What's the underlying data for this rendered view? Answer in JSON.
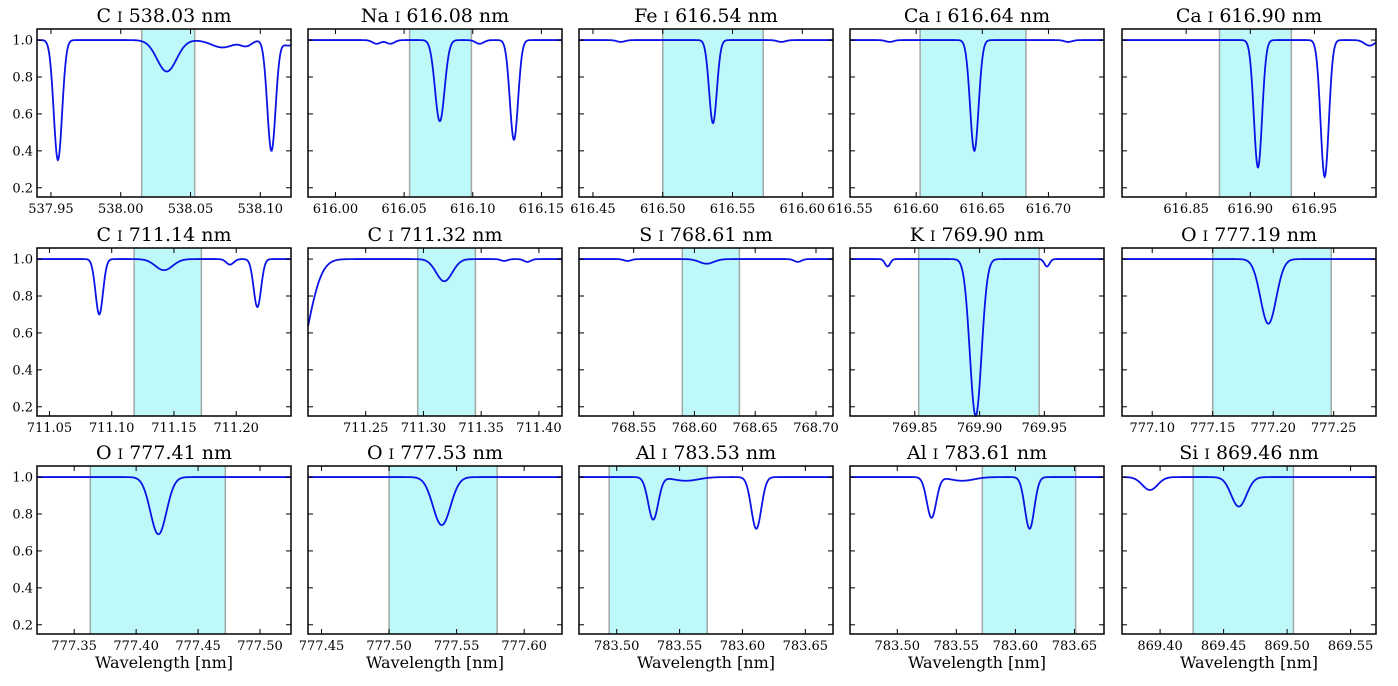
{
  "colors": {
    "line": "#0a14e6",
    "window": "#bff8f8",
    "window_edge": "#a0a8a8"
  },
  "chart_data": [
    {
      "type": "line",
      "title": "C I 538.03 nm",
      "element": "C",
      "ion": "I",
      "wl": "538.03",
      "unit": "nm",
      "xlabel": "",
      "xlim": [
        537.94,
        538.122
      ],
      "ylim": [
        0.15,
        1.06
      ],
      "xticks": [
        "537.95",
        "538.00",
        "538.05",
        "538.10"
      ],
      "window": [
        538.015,
        538.053
      ],
      "continuum": 1.0,
      "lines": [
        {
          "c": 537.955,
          "d": 0.65,
          "w": 0.003
        },
        {
          "c": 538.033,
          "d": 0.17,
          "w": 0.007
        },
        {
          "c": 538.108,
          "d": 0.6,
          "w": 0.003
        },
        {
          "c": 538.073,
          "d": 0.04,
          "w": 0.008
        },
        {
          "c": 538.09,
          "d": 0.03,
          "w": 0.004
        },
        {
          "c": 538.12,
          "d": 0.03,
          "w": 0.004
        }
      ]
    },
    {
      "type": "line",
      "title": "Na I 616.08 nm",
      "element": "Na",
      "ion": "I",
      "wl": "616.08",
      "unit": "nm",
      "xlabel": "",
      "xlim": [
        615.98,
        616.165
      ],
      "ylim": [
        0.15,
        1.06
      ],
      "xticks": [
        "616.00",
        "616.05",
        "616.10",
        "616.15"
      ],
      "window": [
        616.054,
        616.099
      ],
      "continuum": 1.0,
      "lines": [
        {
          "c": 616.076,
          "d": 0.44,
          "w": 0.0035
        },
        {
          "c": 616.13,
          "d": 0.54,
          "w": 0.003
        },
        {
          "c": 616.03,
          "d": 0.02,
          "w": 0.003
        },
        {
          "c": 616.04,
          "d": 0.02,
          "w": 0.003
        },
        {
          "c": 616.105,
          "d": 0.02,
          "w": 0.003
        }
      ]
    },
    {
      "type": "line",
      "title": "Fe I 616.54 nm",
      "element": "Fe",
      "ion": "I",
      "wl": "616.54",
      "unit": "nm",
      "xlabel": "",
      "xlim": [
        616.44,
        616.622
      ],
      "ylim": [
        0.15,
        1.06
      ],
      "xticks": [
        "616.45",
        "616.50",
        "616.55",
        "616.60"
      ],
      "window": [
        616.5,
        616.572
      ],
      "continuum": 1.0,
      "lines": [
        {
          "c": 616.536,
          "d": 0.45,
          "w": 0.0028
        },
        {
          "c": 616.47,
          "d": 0.01,
          "w": 0.003
        },
        {
          "c": 616.585,
          "d": 0.01,
          "w": 0.003
        }
      ]
    },
    {
      "type": "line",
      "title": "Ca I 616.64 nm",
      "element": "Ca",
      "ion": "I",
      "wl": "616.64",
      "unit": "nm",
      "xlabel": "",
      "xlim": [
        616.55,
        616.742
      ],
      "ylim": [
        0.15,
        1.06
      ],
      "xticks": [
        "616.55",
        "616.60",
        "616.65",
        "616.70"
      ],
      "window": [
        616.603,
        616.683
      ],
      "continuum": 1.0,
      "lines": [
        {
          "c": 616.644,
          "d": 0.6,
          "w": 0.0032
        },
        {
          "c": 616.58,
          "d": 0.01,
          "w": 0.003
        },
        {
          "c": 616.715,
          "d": 0.01,
          "w": 0.003
        }
      ]
    },
    {
      "type": "line",
      "title": "Ca I 616.90 nm",
      "element": "Ca",
      "ion": "I",
      "wl": "616.90",
      "unit": "nm",
      "xlabel": "",
      "xlim": [
        616.8,
        616.998
      ],
      "ylim": [
        0.15,
        1.06
      ],
      "xticks": [
        "616.85",
        "616.90",
        "616.95"
      ],
      "window": [
        616.876,
        616.932
      ],
      "continuum": 1.0,
      "lines": [
        {
          "c": 616.906,
          "d": 0.69,
          "w": 0.0032
        },
        {
          "c": 616.958,
          "d": 0.74,
          "w": 0.0032
        },
        {
          "c": 616.993,
          "d": 0.03,
          "w": 0.004
        }
      ]
    },
    {
      "type": "line",
      "title": "C I 711.14 nm",
      "element": "C",
      "ion": "I",
      "wl": "711.14",
      "unit": "nm",
      "xlabel": "",
      "xlim": [
        711.04,
        711.244
      ],
      "ylim": [
        0.15,
        1.06
      ],
      "xticks": [
        "711.05",
        "711.10",
        "711.15",
        "711.20"
      ],
      "window": [
        711.118,
        711.172
      ],
      "continuum": 1.0,
      "lines": [
        {
          "c": 711.09,
          "d": 0.3,
          "w": 0.003
        },
        {
          "c": 711.142,
          "d": 0.06,
          "w": 0.007
        },
        {
          "c": 711.217,
          "d": 0.26,
          "w": 0.003
        },
        {
          "c": 711.195,
          "d": 0.03,
          "w": 0.003
        }
      ]
    },
    {
      "type": "line",
      "title": "C I 711.32 nm",
      "element": "C",
      "ion": "I",
      "wl": "711.32",
      "unit": "nm",
      "xlabel": "",
      "xlim": [
        711.2,
        711.42
      ],
      "ylim": [
        0.15,
        1.06
      ],
      "xticks": [
        "711.25",
        "711.30",
        "711.35",
        "711.40"
      ],
      "window": [
        711.295,
        711.345
      ],
      "continuum": 1.0,
      "lines": [
        {
          "c": 711.318,
          "d": 0.12,
          "w": 0.007
        },
        {
          "c": 711.188,
          "d": 0.6,
          "w": 0.012
        },
        {
          "c": 711.37,
          "d": 0.01,
          "w": 0.003
        },
        {
          "c": 711.39,
          "d": 0.015,
          "w": 0.003
        }
      ]
    },
    {
      "type": "line",
      "title": "S I 768.61 nm",
      "element": "S",
      "ion": "I",
      "wl": "768.61",
      "unit": "nm",
      "xlabel": "",
      "xlim": [
        768.505,
        768.714
      ],
      "ylim": [
        0.15,
        1.06
      ],
      "xticks": [
        "768.55",
        "768.60",
        "768.65",
        "768.70"
      ],
      "window": [
        768.59,
        768.637
      ],
      "continuum": 1.0,
      "lines": [
        {
          "c": 768.61,
          "d": 0.025,
          "w": 0.006
        },
        {
          "c": 768.545,
          "d": 0.01,
          "w": 0.003
        },
        {
          "c": 768.685,
          "d": 0.015,
          "w": 0.003
        }
      ]
    },
    {
      "type": "line",
      "title": "K I 769.90 nm",
      "element": "K",
      "ion": "I",
      "wl": "769.90",
      "unit": "nm",
      "xlabel": "",
      "xlim": [
        769.8,
        769.996
      ],
      "ylim": [
        0.15,
        1.06
      ],
      "xticks": [
        "769.85",
        "769.90",
        "769.95"
      ],
      "window": [
        769.853,
        769.946
      ],
      "continuum": 1.0,
      "lines": [
        {
          "c": 769.897,
          "d": 0.85,
          "w": 0.0045
        },
        {
          "c": 769.829,
          "d": 0.04,
          "w": 0.002
        },
        {
          "c": 769.952,
          "d": 0.04,
          "w": 0.002
        }
      ]
    },
    {
      "type": "line",
      "title": "O I 777.19 nm",
      "element": "O",
      "ion": "I",
      "wl": "777.19",
      "unit": "nm",
      "xlabel": "",
      "xlim": [
        777.075,
        777.285
      ],
      "ylim": [
        0.15,
        1.06
      ],
      "xticks": [
        "777.10",
        "777.15",
        "777.20",
        "777.25"
      ],
      "window": [
        777.15,
        777.248
      ],
      "continuum": 1.0,
      "lines": [
        {
          "c": 777.196,
          "d": 0.35,
          "w": 0.0065
        }
      ]
    },
    {
      "type": "line",
      "title": "O I 777.41 nm",
      "element": "O",
      "ion": "I",
      "wl": "777.41",
      "unit": "nm",
      "xlabel": "Wavelength [nm]",
      "xlim": [
        777.32,
        777.525
      ],
      "ylim": [
        0.15,
        1.06
      ],
      "xticks": [
        "777.35",
        "777.40",
        "777.45",
        "777.50"
      ],
      "window": [
        777.363,
        777.472
      ],
      "continuum": 1.0,
      "lines": [
        {
          "c": 777.418,
          "d": 0.31,
          "w": 0.0065
        }
      ]
    },
    {
      "type": "line",
      "title": "O I 777.53 nm",
      "element": "O",
      "ion": "I",
      "wl": "777.53",
      "unit": "nm",
      "xlabel": "Wavelength [nm]",
      "xlim": [
        777.44,
        777.628
      ],
      "ylim": [
        0.15,
        1.06
      ],
      "xticks": [
        "777.45",
        "777.50",
        "777.55",
        "777.60"
      ],
      "window": [
        777.5,
        777.58
      ],
      "continuum": 1.0,
      "lines": [
        {
          "c": 777.539,
          "d": 0.26,
          "w": 0.0065
        }
      ]
    },
    {
      "type": "line",
      "title": "Al I 783.53 nm",
      "element": "Al",
      "ion": "I",
      "wl": "783.53",
      "unit": "nm",
      "xlabel": "Wavelength [nm]",
      "xlim": [
        783.47,
        783.672
      ],
      "ylim": [
        0.15,
        1.06
      ],
      "xticks": [
        "783.50",
        "783.55",
        "783.60",
        "783.65"
      ],
      "window": [
        783.494,
        783.572
      ],
      "continuum": 1.0,
      "lines": [
        {
          "c": 783.529,
          "d": 0.23,
          "w": 0.004
        },
        {
          "c": 783.611,
          "d": 0.28,
          "w": 0.004
        },
        {
          "c": 783.555,
          "d": 0.02,
          "w": 0.01
        }
      ]
    },
    {
      "type": "line",
      "title": "Al I 783.61 nm",
      "element": "Al",
      "ion": "I",
      "wl": "783.61",
      "unit": "nm",
      "xlabel": "Wavelength [nm]",
      "xlim": [
        783.46,
        783.675
      ],
      "ylim": [
        0.15,
        1.06
      ],
      "xticks": [
        "783.50",
        "783.55",
        "783.60",
        "783.65"
      ],
      "window": [
        783.572,
        783.651
      ],
      "continuum": 1.0,
      "lines": [
        {
          "c": 783.529,
          "d": 0.22,
          "w": 0.004
        },
        {
          "c": 783.612,
          "d": 0.28,
          "w": 0.004
        },
        {
          "c": 783.555,
          "d": 0.02,
          "w": 0.01
        }
      ]
    },
    {
      "type": "line",
      "title": "Si I 869.46 nm",
      "element": "Si",
      "ion": "I",
      "wl": "869.46",
      "unit": "nm",
      "xlabel": "Wavelength [nm]",
      "xlim": [
        869.37,
        869.57
      ],
      "ylim": [
        0.15,
        1.06
      ],
      "xticks": [
        "869.40",
        "869.45",
        "869.50",
        "869.55"
      ],
      "window": [
        869.426,
        869.505
      ],
      "continuum": 1.0,
      "lines": [
        {
          "c": 869.462,
          "d": 0.16,
          "w": 0.006
        },
        {
          "c": 869.392,
          "d": 0.07,
          "w": 0.006
        }
      ]
    }
  ],
  "axis": {
    "yticks": [
      "0.2",
      "0.4",
      "0.6",
      "0.8",
      "1.0"
    ]
  }
}
